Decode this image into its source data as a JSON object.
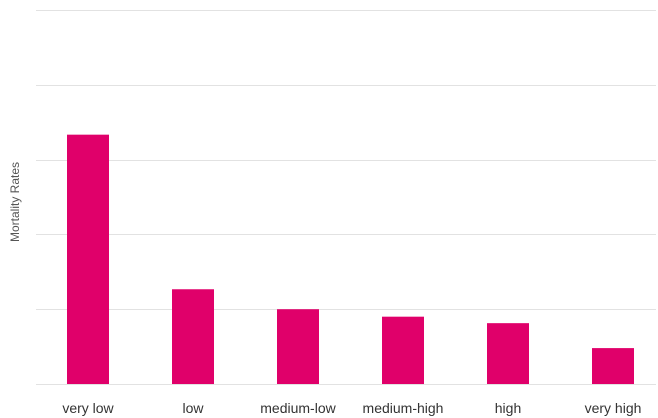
{
  "chart_data": {
    "type": "bar",
    "title": "",
    "xlabel": "",
    "ylabel": "Mortality Rates",
    "categories": [
      "very low",
      "low",
      "medium-low",
      "medium-high",
      "high",
      "very high"
    ],
    "values": [
      50,
      19,
      15,
      13.5,
      12.2,
      7.2
    ],
    "ylim": [
      0,
      75
    ],
    "gridlines": [
      0,
      15,
      30,
      45,
      60,
      75
    ],
    "grid": true,
    "legend": "none",
    "bar_color": "#e0006a",
    "grid_color": "#e2e2e2"
  }
}
